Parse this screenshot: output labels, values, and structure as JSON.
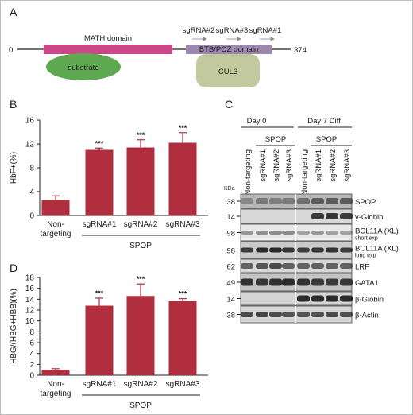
{
  "panels": {
    "a": "A",
    "b": "B",
    "c": "C",
    "d": "D"
  },
  "domain_map": {
    "start": "0",
    "end": "374",
    "math_label": "MATH domain",
    "btb_label": "BTB/POZ domain",
    "substrate_label": "substrate",
    "cul3_label": "CUL3",
    "sgrnas": [
      "sgRNA#2",
      "sgRNA#3",
      "sgRNA#1"
    ],
    "colors": {
      "math": "#cc4788",
      "btb": "#9c87ad",
      "substrate": "#5fa852",
      "cul3": "#c2c99e"
    }
  },
  "chart_b": {
    "ylabel": "HbF+(%)",
    "ticks": [
      "0",
      "4",
      "8",
      "12",
      "16"
    ],
    "categories": [
      "Non-\ntargeting",
      "sgRNA#1",
      "sgRNA#2",
      "sgRNA#3"
    ],
    "group_label": "SPOP",
    "sig": "***"
  },
  "chart_d": {
    "ylabel": "HBG/(HBG+HBB)(%)",
    "ticks": [
      "0",
      "2",
      "4",
      "6",
      "8",
      "10",
      "12",
      "14",
      "16",
      "18"
    ],
    "categories": [
      "Non-\ntargeting",
      "sgRNA#1",
      "sgRNA#2",
      "sgRNA#3"
    ],
    "group_label": "SPOP",
    "sig": "***"
  },
  "chart_data": [
    {
      "type": "bar",
      "categories": [
        "Non-targeting",
        "sgRNA#1",
        "sgRNA#2",
        "sgRNA#3"
      ],
      "values": [
        2.6,
        11.0,
        11.4,
        12.2
      ],
      "errors": [
        0.7,
        0.3,
        1.3,
        1.7
      ],
      "ylabel": "HbF+(%)",
      "ylim": [
        0,
        16
      ],
      "significance": [
        "",
        "***",
        "***",
        "***"
      ],
      "color": "#b02e3e"
    },
    {
      "type": "bar",
      "categories": [
        "Non-targeting",
        "sgRNA#1",
        "sgRNA#2",
        "sgRNA#3"
      ],
      "values": [
        1.0,
        12.8,
        14.6,
        13.7
      ],
      "errors": [
        0.2,
        1.4,
        2.2,
        0.4
      ],
      "ylabel": "HBG/(HBG+HBB)(%)",
      "ylim": [
        0,
        18
      ],
      "significance": [
        "",
        "***",
        "***",
        "***"
      ],
      "color": "#b02e3e"
    }
  ],
  "blot": {
    "day0": "Day 0",
    "day7": "Day 7 Diff",
    "spop": "SPOP",
    "lanes": [
      "Non-targeting",
      "sgRNA#1",
      "sgRNA#2",
      "sgRNA#3"
    ],
    "kda": "KDa",
    "rows": [
      {
        "mw": "38",
        "label": "SPOP",
        "sub": ""
      },
      {
        "mw": "14",
        "label": "γ-Globin",
        "sub": ""
      },
      {
        "mw": "98",
        "label": "BCL11A (XL)",
        "sub": "short exp"
      },
      {
        "mw": "98",
        "label": "BCL11A (XL)",
        "sub": "long exp"
      },
      {
        "mw": "62",
        "label": "LRF",
        "sub": ""
      },
      {
        "mw": "49",
        "label": "GATA1",
        "sub": ""
      },
      {
        "mw": "14",
        "label": "β-Globin",
        "sub": ""
      },
      {
        "mw": "38",
        "label": "β-Actin",
        "sub": ""
      }
    ]
  }
}
